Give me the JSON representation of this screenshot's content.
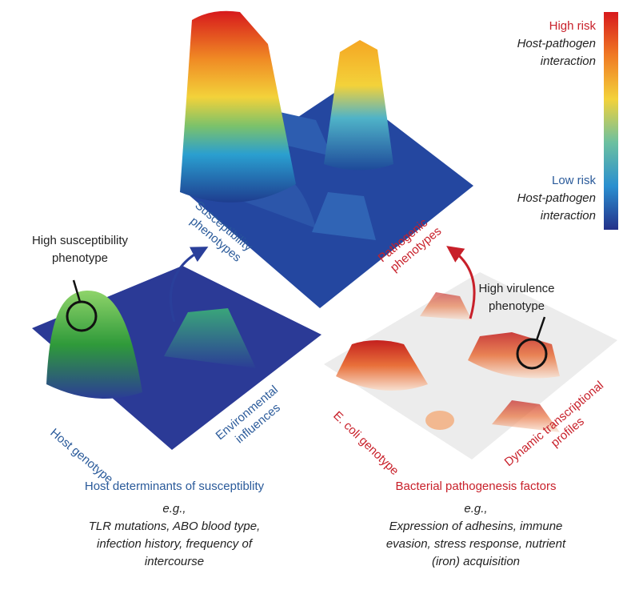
{
  "legend": {
    "high": {
      "title": "High risk",
      "lines": [
        "Host-pathogen",
        "interaction"
      ]
    },
    "low": {
      "title": "Low risk",
      "lines": [
        "Host-pathogen",
        "interaction"
      ]
    }
  },
  "callouts": {
    "susceptibility": [
      "High susceptibility",
      "phenotype"
    ],
    "virulence": [
      "High virulence",
      "phenotype"
    ]
  },
  "surfaces": {
    "top": {
      "left_axis": [
        "Susceptibility",
        "phenotypes"
      ],
      "right_axis": [
        "Pathogenic",
        "phenotypes"
      ]
    },
    "host": {
      "left_axis": [
        "Host genotype"
      ],
      "right_axis": [
        "Environmental",
        "influences"
      ]
    },
    "bacterial": {
      "left_axis": [
        "E. coli genotype"
      ],
      "right_axis": [
        "Dynamic transcriptional",
        "profiles"
      ]
    }
  },
  "captions": {
    "host": {
      "title": "Host determinants of susceptiblity",
      "eg": "e.g.,",
      "lines": [
        "TLR mutations, ABO blood type,",
        "infection history, frequency of",
        "intercourse"
      ]
    },
    "bacterial": {
      "title": "Bacterial pathogenesis factors",
      "eg": "e.g.,",
      "lines": [
        "Expression of adhesins, immune",
        "evasion, stress response, nutrient",
        "(iron) acquisition"
      ]
    }
  }
}
